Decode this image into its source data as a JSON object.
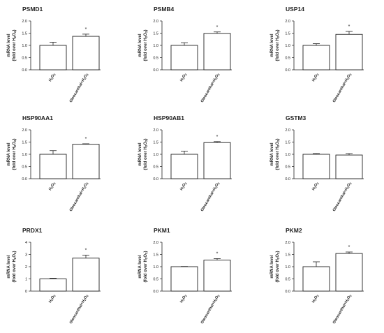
{
  "chart_data": [
    {
      "type": "bar",
      "title": "PSMD1",
      "ylabel": "mRNA level",
      "ylabel2": "(fold over H2O2)",
      "ylim": [
        0,
        2.0
      ],
      "yticks": [
        "0.0",
        "0.5",
        "1.0",
        "1.5",
        "2.0"
      ],
      "categories": [
        "H2O2",
        "Oleocanthal+H2O2"
      ],
      "values": [
        1.0,
        1.37
      ],
      "errors": [
        0.13,
        0.09
      ],
      "annotations": [
        "",
        "*"
      ]
    },
    {
      "type": "bar",
      "title": "PSMB4",
      "ylabel": "mRNA level",
      "ylabel2": "(fold over H2O2)",
      "ylim": [
        0,
        2.0
      ],
      "yticks": [
        "0.0",
        "0.5",
        "1.0",
        "1.5",
        "2.0"
      ],
      "categories": [
        "H2O2",
        "Oleocanthal+H2O2"
      ],
      "values": [
        1.0,
        1.49
      ],
      "errors": [
        0.11,
        0.06
      ],
      "annotations": [
        "",
        "*"
      ]
    },
    {
      "type": "bar",
      "title": "USP14",
      "ylabel": "mRNA level",
      "ylabel2": "(fold over H2O2)",
      "ylim": [
        0,
        2.0
      ],
      "yticks": [
        "0.0",
        "0.5",
        "1.0",
        "1.5",
        "2.0"
      ],
      "categories": [
        "H2O2",
        "Oleocanthal+H2O2"
      ],
      "values": [
        1.0,
        1.45
      ],
      "errors": [
        0.07,
        0.12
      ],
      "annotations": [
        "",
        "*"
      ]
    },
    {
      "type": "bar",
      "title": "HSP90AA1",
      "ylabel": "mRNA level",
      "ylabel2": "(fold over H2O2)",
      "ylim": [
        0,
        2.0
      ],
      "yticks": [
        "0.0",
        "0.5",
        "1.0",
        "1.5",
        "2.0"
      ],
      "categories": [
        "H2O2",
        "Oleocanthal+H2O2"
      ],
      "values": [
        1.0,
        1.41
      ],
      "errors": [
        0.15,
        0.02
      ],
      "annotations": [
        "",
        "*"
      ]
    },
    {
      "type": "bar",
      "title": "HSP90AB1",
      "ylabel": "mRNA level",
      "ylabel2": "(fold over H2O2)",
      "ylim": [
        0,
        2.0
      ],
      "yticks": [
        "0.0",
        "0.5",
        "1.0",
        "1.5",
        "2.0"
      ],
      "categories": [
        "H2O2",
        "Oleocanthal+H2O2"
      ],
      "values": [
        1.0,
        1.48
      ],
      "errors": [
        0.13,
        0.04
      ],
      "annotations": [
        "",
        "*"
      ]
    },
    {
      "type": "bar",
      "title": "GSTM3",
      "ylabel": "mRNA level",
      "ylabel2": "(fold over H2O2)",
      "ylim": [
        0,
        2.0
      ],
      "yticks": [
        "0.0",
        "0.5",
        "1.0",
        "1.5",
        "2.0"
      ],
      "categories": [
        "H2O2",
        "Oleocanthal+H2O2"
      ],
      "values": [
        1.0,
        0.97
      ],
      "errors": [
        0.03,
        0.06
      ],
      "annotations": [
        "",
        ""
      ]
    },
    {
      "type": "bar",
      "title": "PRDX1",
      "ylabel": "mRNA level",
      "ylabel2": "(fold over H2O2)",
      "ylim": [
        0,
        4
      ],
      "yticks": [
        "0",
        "1",
        "2",
        "3",
        "4"
      ],
      "categories": [
        "H2O2",
        "Oleocanthal+H2O2"
      ],
      "values": [
        1.0,
        2.7
      ],
      "errors": [
        0.05,
        0.25
      ],
      "annotations": [
        "",
        "*"
      ]
    },
    {
      "type": "bar",
      "title": "PKM1",
      "ylabel": "mRNA level",
      "ylabel2": "(fold over H2O2)",
      "ylim": [
        0,
        2.0
      ],
      "yticks": [
        "0.0",
        "0.5",
        "1.0",
        "1.5",
        "2.0"
      ],
      "categories": [
        "H2O2",
        "Oleocanthal+H2O2"
      ],
      "values": [
        1.0,
        1.27
      ],
      "errors": [
        0.01,
        0.06
      ],
      "annotations": [
        "",
        "*"
      ]
    },
    {
      "type": "bar",
      "title": "PKM2",
      "ylabel": "mRNA level",
      "ylabel2": "(fold over H2O2)",
      "ylim": [
        0,
        2.0
      ],
      "yticks": [
        "0.0",
        "0.5",
        "1.0",
        "1.5",
        "2.0"
      ],
      "categories": [
        "H2O2",
        "Oleocanthal+H2O2"
      ],
      "values": [
        1.0,
        1.54
      ],
      "errors": [
        0.2,
        0.06
      ],
      "annotations": [
        "",
        "*"
      ]
    }
  ]
}
